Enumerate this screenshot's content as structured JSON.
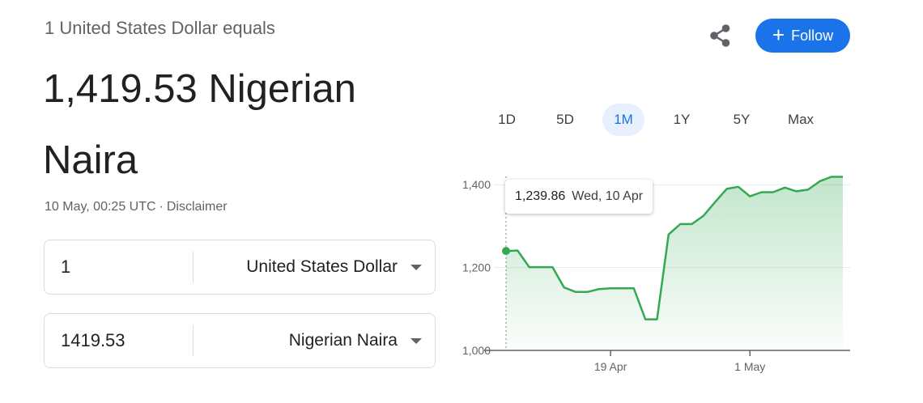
{
  "header": {
    "subtitle": "1 United States Dollar equals",
    "rate_text": "1,419.53 Nigerian Naira",
    "updated": "10 May, 00:25 UTC",
    "separator": "·",
    "disclaimer": "Disclaimer"
  },
  "actions": {
    "share_icon": "share-icon",
    "follow_plus": "+",
    "follow_label": "Follow",
    "follow_color": "#1a73e8"
  },
  "converter": {
    "from": {
      "amount": "1",
      "currency": "United States Dollar"
    },
    "to": {
      "amount": "1419.53",
      "currency": "Nigerian Naira"
    }
  },
  "tabs": [
    {
      "label": "1D",
      "active": false
    },
    {
      "label": "5D",
      "active": false
    },
    {
      "label": "1M",
      "active": true
    },
    {
      "label": "1Y",
      "active": false
    },
    {
      "label": "5Y",
      "active": false
    },
    {
      "label": "Max",
      "active": false
    }
  ],
  "tooltip": {
    "value": "1,239.86",
    "date": "Wed, 10 Apr"
  },
  "chart_data": {
    "type": "area",
    "x_tick_labels": [
      "19 Apr",
      "1 May"
    ],
    "y_tick_labels": [
      "1,000",
      "1,200",
      "1,400"
    ],
    "ylim": [
      1000,
      1420
    ],
    "grid": true,
    "line_color": "#34a853",
    "x": [
      "10 Apr",
      "11 Apr",
      "12 Apr",
      "13 Apr",
      "14 Apr",
      "15 Apr",
      "16 Apr",
      "17 Apr",
      "18 Apr",
      "19 Apr",
      "20 Apr",
      "21 Apr",
      "22 Apr",
      "23 Apr",
      "24 Apr",
      "25 Apr",
      "26 Apr",
      "27 Apr",
      "28 Apr",
      "29 Apr",
      "30 Apr",
      "1 May",
      "2 May",
      "3 May",
      "4 May",
      "5 May",
      "6 May",
      "7 May",
      "8 May",
      "9 May"
    ],
    "values": [
      1240,
      1241,
      1201,
      1201,
      1201,
      1152,
      1141,
      1141,
      1148,
      1150,
      1150,
      1150,
      1075,
      1075,
      1280,
      1305,
      1305,
      1325,
      1358,
      1390,
      1395,
      1372,
      1382,
      1382,
      1393,
      1384,
      1388,
      1408,
      1419,
      1419
    ]
  }
}
